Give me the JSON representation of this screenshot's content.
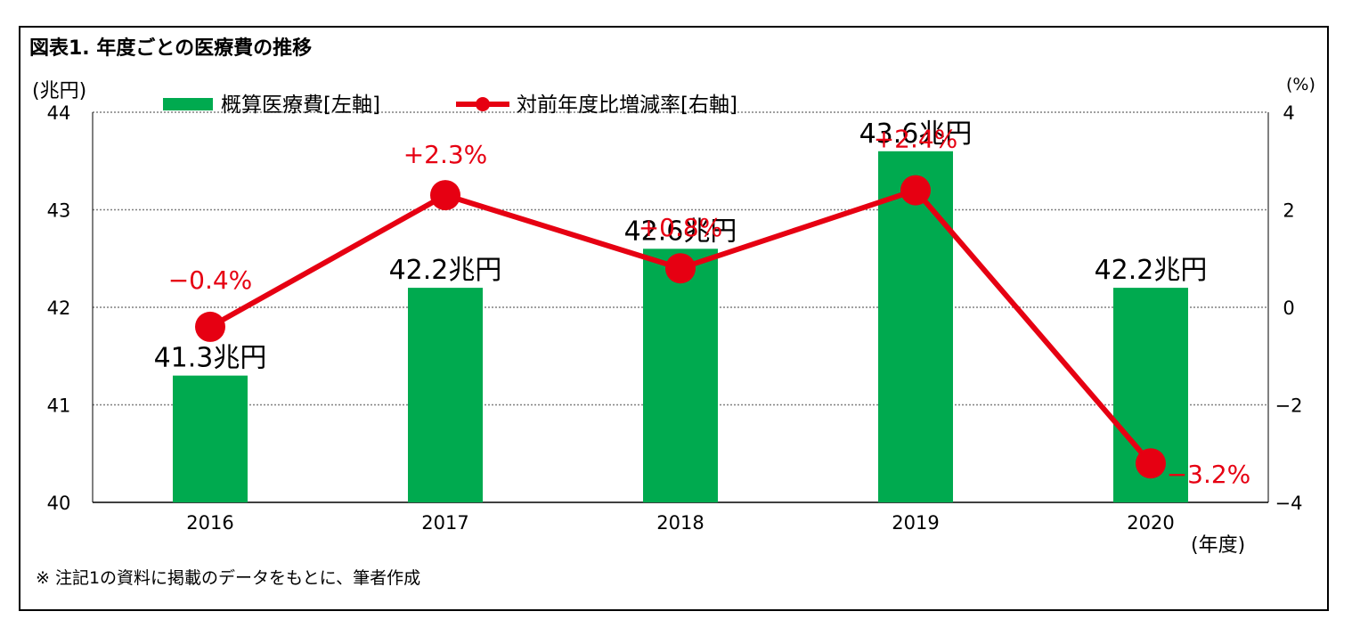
{
  "title": "図表1. 年度ごとの医療費の推移",
  "note": "※ 注記1の資料に掲載のデータをもとに、筆者作成",
  "chart_data": {
    "type": "bar",
    "title": "図表1. 年度ごとの医療費の推移",
    "categories": [
      "2016",
      "2017",
      "2018",
      "2019",
      "2020"
    ],
    "xlabel": "(年度)",
    "y_left": {
      "label": "(兆円)",
      "range": [
        40,
        44
      ],
      "ticks": [
        "40",
        "41",
        "42",
        "43",
        "44"
      ]
    },
    "y_right": {
      "label": "(%)",
      "range": [
        -4,
        4
      ],
      "ticks": [
        "−4",
        "−2",
        "0",
        "2",
        "4"
      ]
    },
    "grid": true,
    "legend_position": "top-left",
    "series": [
      {
        "name": "概算医療費[左軸]",
        "type": "bar",
        "axis": "left",
        "color": "#00AA4F",
        "values": [
          41.3,
          42.2,
          42.6,
          43.6,
          42.2
        ],
        "labels": [
          "41.3兆円",
          "42.2兆円",
          "42.6兆円",
          "43.6兆円",
          "42.2兆円"
        ]
      },
      {
        "name": "対前年度比増減率[右軸]",
        "type": "line",
        "axis": "right",
        "color": "#E60012",
        "values": [
          -0.4,
          2.3,
          0.8,
          2.4,
          -3.2
        ],
        "labels": [
          "−0.4%",
          "+2.3%",
          "+0.8%",
          "+2.4%",
          "−3.2%"
        ]
      }
    ]
  }
}
